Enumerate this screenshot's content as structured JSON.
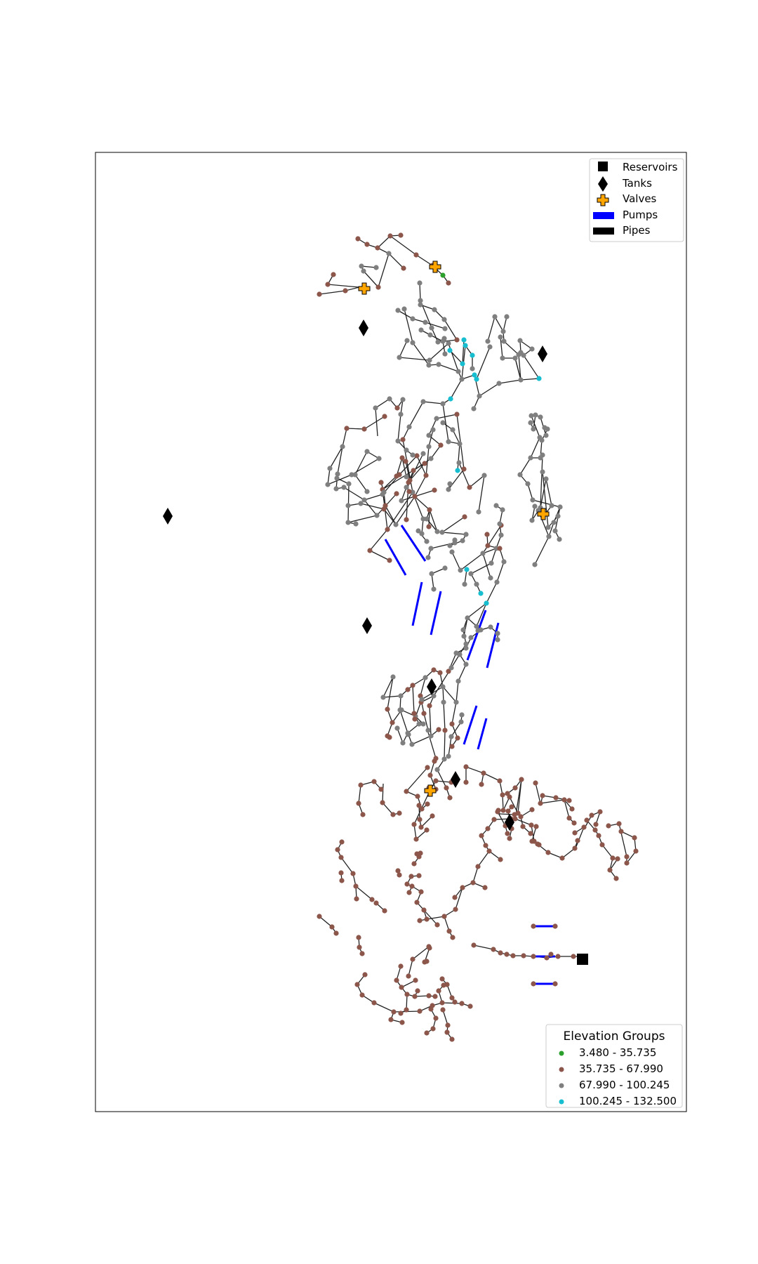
{
  "legend_top": {
    "items": [
      {
        "label": "Reservoirs",
        "icon": "square-icon"
      },
      {
        "label": "Tanks",
        "icon": "diamond-icon"
      },
      {
        "label": "Valves",
        "icon": "plus-icon"
      },
      {
        "label": "Pumps",
        "icon": "pump-swatch-icon"
      },
      {
        "label": "Pipes",
        "icon": "pipe-swatch-icon"
      }
    ]
  },
  "legend_bottom": {
    "title": "Elevation Groups",
    "items": [
      {
        "label": "3.480 - 35.735",
        "color": "#2ca02c"
      },
      {
        "label": "35.735 - 67.990",
        "color": "#8c564b"
      },
      {
        "label": "67.990 - 100.245",
        "color": "#7f7f7f"
      },
      {
        "label": "100.245 - 132.500",
        "color": "#17becf"
      }
    ]
  },
  "colors": {
    "pipe": "#222222",
    "pump": "#0000ff",
    "valve": "#ffa500",
    "tank": "#000000",
    "reservoir": "#000000"
  }
}
